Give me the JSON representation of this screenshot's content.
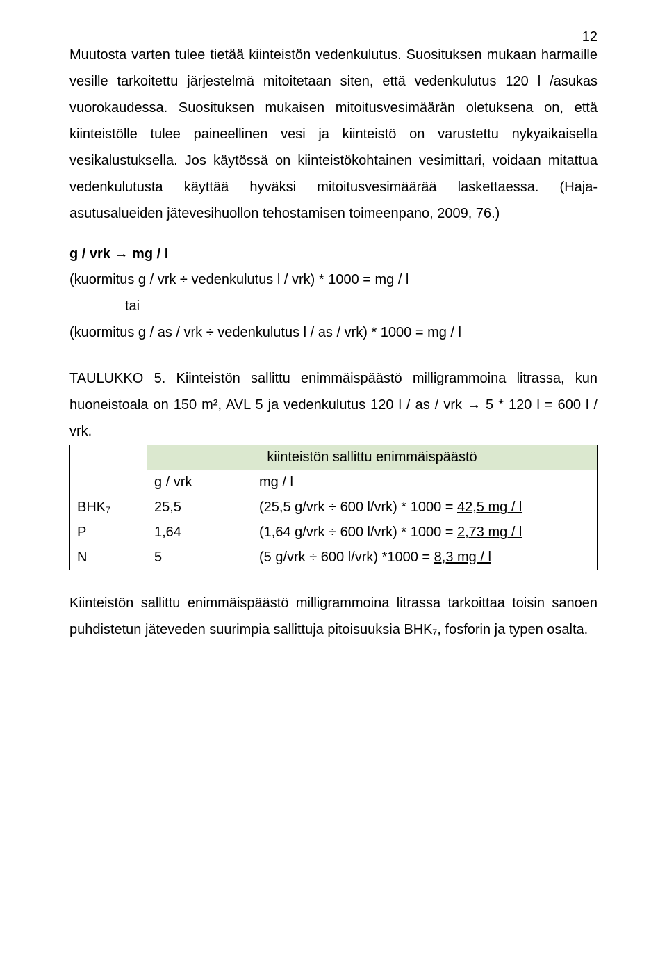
{
  "page_number": "12",
  "paragraphs": {
    "p1": "Muutosta varten tulee tietää kiinteistön vedenkulutus. Suosituksen mukaan harmaille vesille tarkoitettu järjestelmä mitoitetaan siten, että vedenkulutus 120 l /asukas vuorokaudessa. Suosituksen mukaisen mitoitusvesimäärän oletuksena on, että kiinteistölle tulee paineellinen vesi ja kiinteistö on varustettu nykyaikaisella vesikalustuksella. Jos käytössä on kiinteistökohtainen vesimittari, voidaan mitattua vedenkulutusta käyttää hyväksi mitoitusvesimäärää laskettaessa. (Haja-asutusalueiden jätevesihuollon tehostamisen toimeenpano, 2009, 76.)",
    "p3": "Kiinteistön sallittu enimmäispäästö milligrammoina litrassa tarkoittaa toisin sanoen puhdistetun jäteveden suurimpia sallittuja pitoisuuksia BHK₇, fosforin ja typen osalta."
  },
  "formula": {
    "heading": "g / vrk → mg / l",
    "line1": "(kuormitus g / vrk ÷ vedenkulutus l / vrk) * 1000 = mg / l",
    "tai": "tai",
    "line2": "(kuormitus g / as / vrk ÷ vedenkulutus l / as / vrk) * 1000 = mg / l"
  },
  "table_caption": "TAULUKKO 5. Kiinteistön sallittu enimmäispäästö milligrammoina litrassa, kun huoneistoala on 150 m², AVL 5 ja vedenkulutus 120 l / as / vrk → 5 * 120 l = 600 l / vrk.",
  "table": {
    "header_span": "kiinteistön sallittu enimmäispäästö",
    "col_g": "g / vrk",
    "col_mg": "mg / l",
    "rows": [
      {
        "label": "BHK₇",
        "g": "25,5",
        "calc": "(25,5 g/vrk ÷ 600 l/vrk) * 1000 = ",
        "result": "42,5 mg / l"
      },
      {
        "label": "P",
        "g": "1,64",
        "calc": "(1,64 g/vrk ÷ 600 l/vrk) * 1000 = ",
        "result": "2,73 mg / l"
      },
      {
        "label": "N",
        "g": "5",
        "calc": "(5 g/vrk ÷ 600 l/vrk) *1000 = ",
        "result": "8,3 mg / l"
      }
    ],
    "header_bg": "#dbe8cf"
  }
}
